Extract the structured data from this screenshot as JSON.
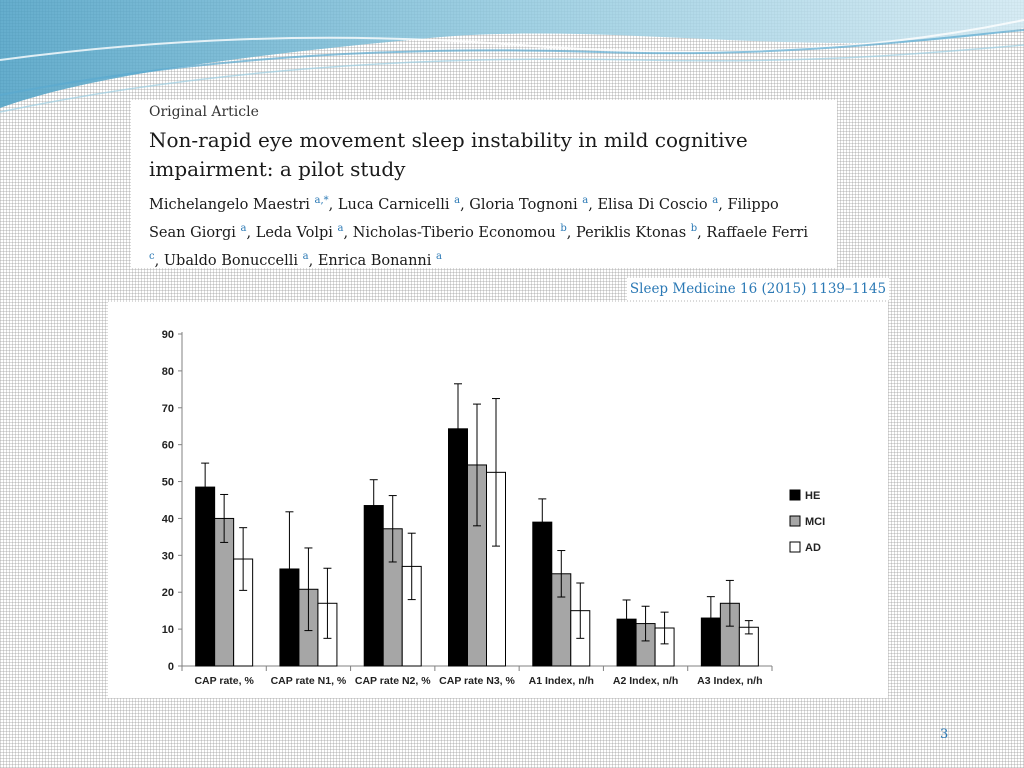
{
  "article": {
    "label": "Original Article",
    "title": "Non-rapid eye movement sleep instability in mild cognitive impairment: a pilot study",
    "authors": [
      {
        "name": "Michelangelo Maestri",
        "aff": "a,*"
      },
      {
        "name": "Luca Carnicelli",
        "aff": "a"
      },
      {
        "name": "Gloria Tognoni",
        "aff": "a"
      },
      {
        "name": "Elisa Di Coscio",
        "aff": "a"
      },
      {
        "name": "Filippo Sean Giorgi",
        "aff": "a"
      },
      {
        "name": "Leda Volpi",
        "aff": "a"
      },
      {
        "name": "Nicholas-Tiberio Economou",
        "aff": "b"
      },
      {
        "name": "Periklis Ktonas",
        "aff": "b"
      },
      {
        "name": "Raffaele Ferri",
        "aff": "c"
      },
      {
        "name": "Ubaldo Bonuccelli",
        "aff": "a"
      },
      {
        "name": "Enrica Bonanni",
        "aff": "a"
      }
    ]
  },
  "citation": "Sleep Medicine 16 (2015) 1139–1145",
  "page_number": "3",
  "chart_data": {
    "type": "bar",
    "categories": [
      "CAP rate, %",
      "CAP rate N1, %",
      "CAP rate N2, %",
      "CAP rate N3, %",
      "A1 Index, n/h",
      "A2 Index, n/h",
      "A3 Index, n/h"
    ],
    "series": [
      {
        "name": "HE",
        "color": "#000000",
        "values": [
          48.5,
          26.3,
          43.5,
          64.3,
          39.0,
          12.7,
          13.0
        ],
        "err": [
          6.5,
          15.5,
          7.0,
          12.2,
          6.3,
          5.2,
          5.8
        ]
      },
      {
        "name": "MCI",
        "color": "#a6a6a6",
        "values": [
          40.0,
          20.8,
          37.2,
          54.5,
          25.0,
          11.5,
          17.0
        ],
        "err": [
          6.5,
          11.2,
          9.0,
          16.5,
          6.3,
          4.7,
          6.2
        ]
      },
      {
        "name": "AD",
        "color": "#ffffff",
        "values": [
          29.0,
          17.0,
          27.0,
          52.5,
          15.0,
          10.3,
          10.5
        ],
        "err": [
          8.5,
          9.5,
          9.0,
          20.0,
          7.5,
          4.3,
          1.8
        ]
      }
    ],
    "ylim": [
      0,
      90
    ],
    "yticks": [
      0,
      10,
      20,
      30,
      40,
      50,
      60,
      70,
      80,
      90
    ],
    "legend": "right",
    "grid": false
  }
}
